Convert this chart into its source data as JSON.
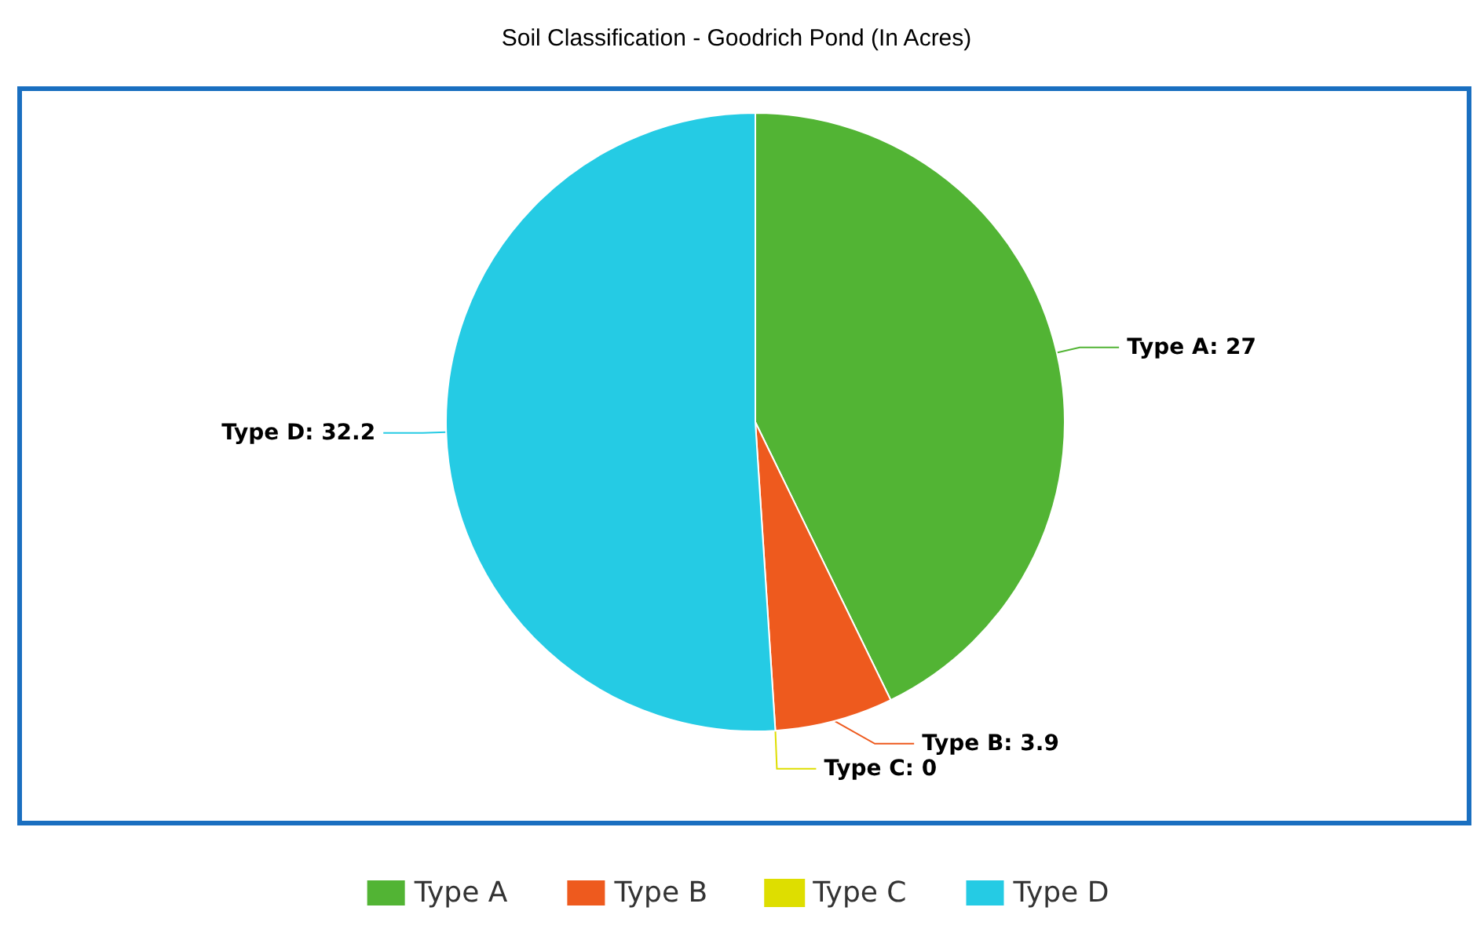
{
  "chart_data": {
    "type": "pie",
    "title": "Soil Classification - Goodrich Pond (In Acres)",
    "categories": [
      "Type A",
      "Type B",
      "Type C",
      "Type D"
    ],
    "values": [
      27,
      3.9,
      0,
      32.2
    ],
    "value_labels": [
      "Type A: 27",
      "Type B: 3.9",
      "Type C: 0",
      "Type D: 32.2"
    ],
    "colors": [
      "#52b434",
      "#ee5a1e",
      "#dede00",
      "#25cbe4"
    ],
    "legend": "bottom"
  }
}
